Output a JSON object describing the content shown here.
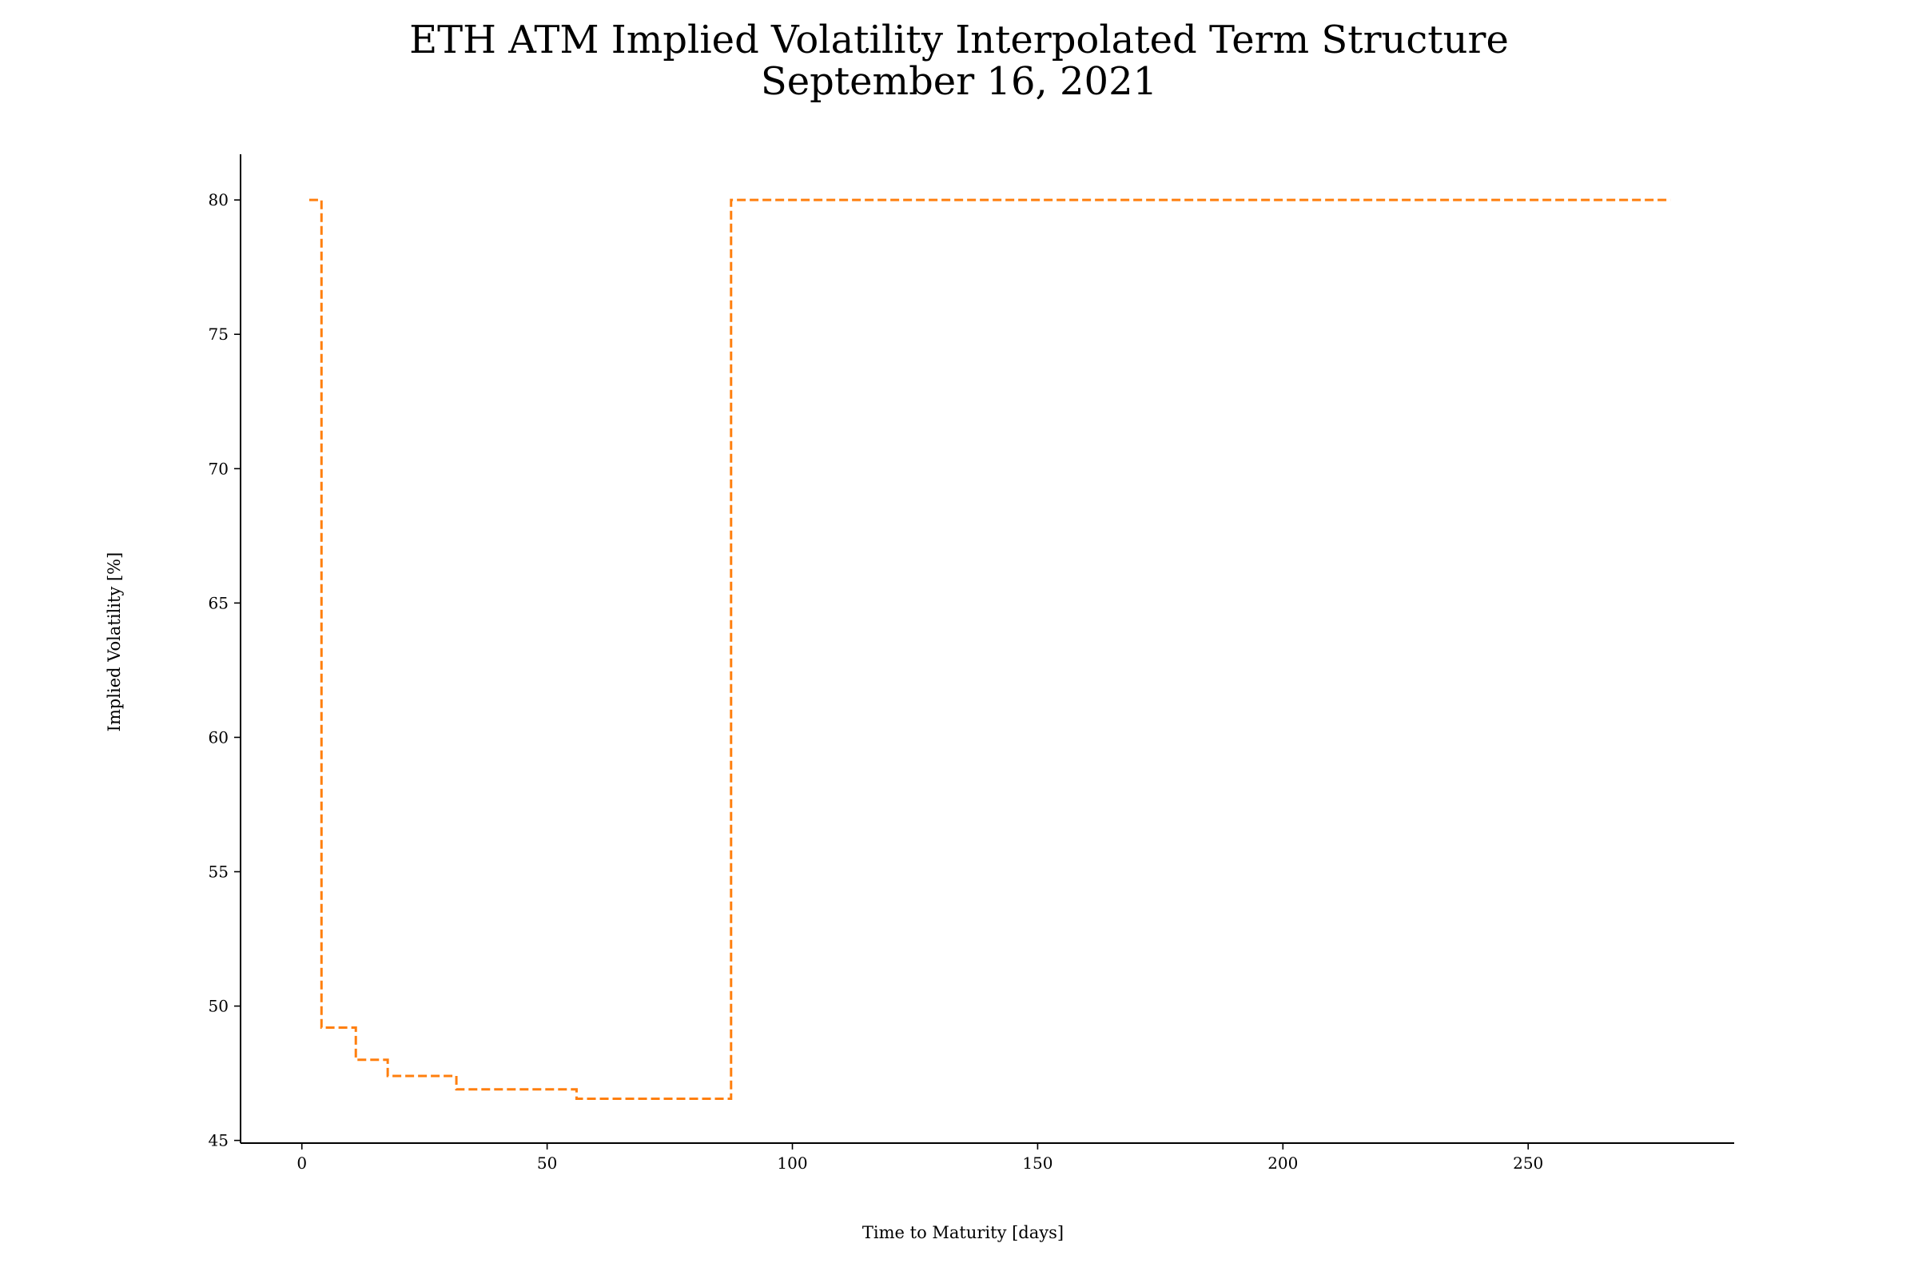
{
  "chart_data": {
    "type": "line",
    "title": "ETH ATM Implied Volatility Interpolated Term Structure",
    "subtitle": "September 16, 2021",
    "xlabel": "Time to Maturity [days]",
    "ylabel": "Implied Volatility [%]",
    "xlim": [
      -12.5,
      292
    ],
    "ylim": [
      44.9,
      81.7
    ],
    "xticks": [
      0,
      50,
      100,
      150,
      200,
      250
    ],
    "yticks": [
      45,
      50,
      55,
      60,
      65,
      70,
      75,
      80
    ],
    "grid": false,
    "line_style": "dashed",
    "series": [
      {
        "color": "#ff7f0e",
        "step": "post",
        "x": [
          1.5,
          4,
          11,
          17.5,
          31.5,
          56,
          87.5,
          279
        ],
        "y": [
          80,
          49.2,
          48.0,
          47.4,
          46.9,
          46.55,
          80,
          80
        ]
      }
    ]
  }
}
